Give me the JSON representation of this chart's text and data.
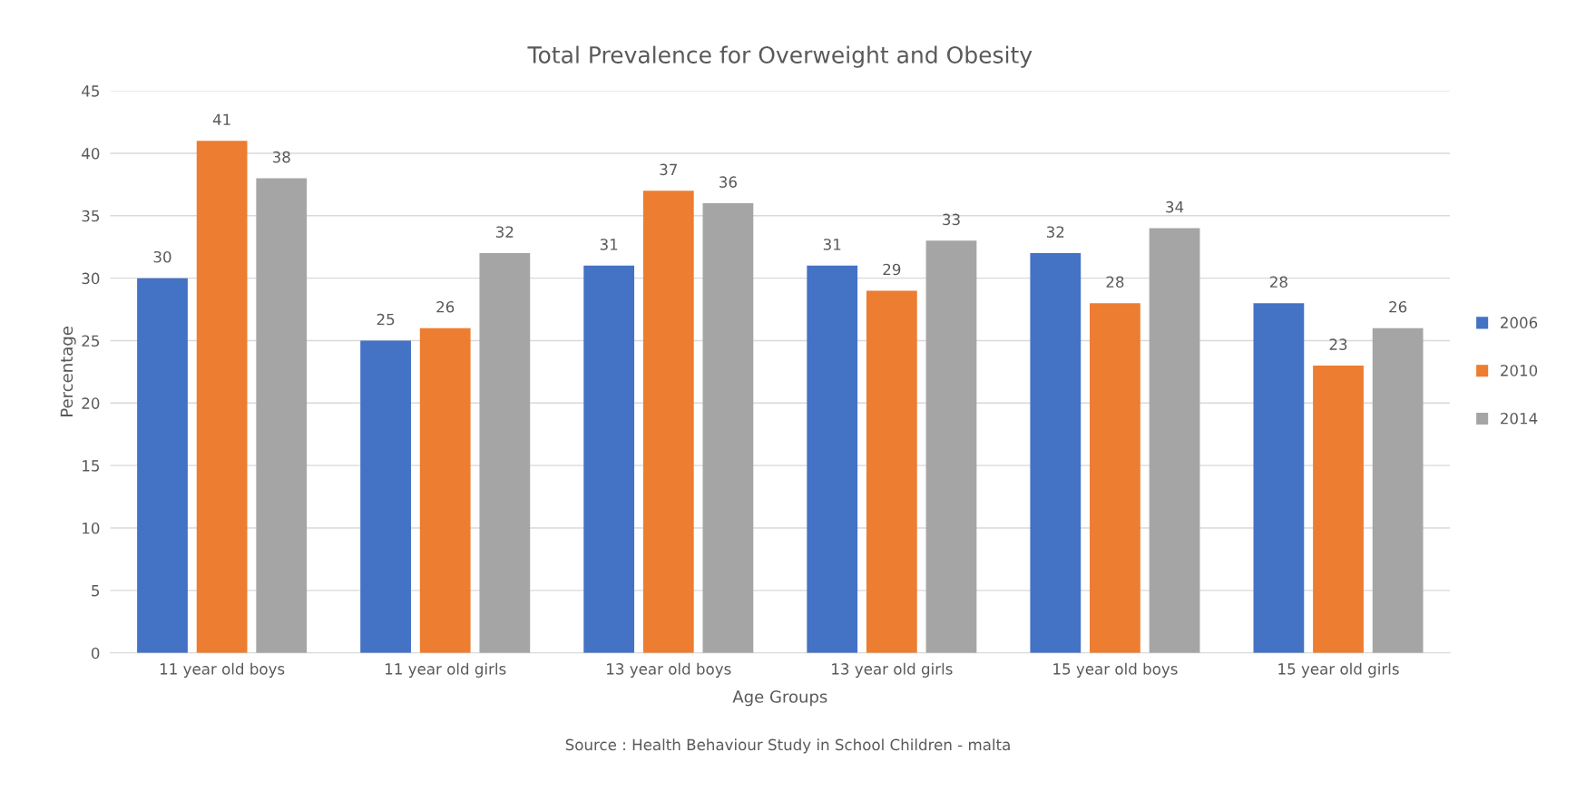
{
  "chart_data": {
    "type": "bar",
    "title": "Total Prevalence for Overweight and Obesity",
    "xlabel": "Age Groups",
    "ylabel": "Percentage",
    "categories": [
      "11 year old boys",
      "11 year old girls",
      "13 year old boys",
      "13 year old girls",
      "15 year old boys",
      "15 year old girls"
    ],
    "series": [
      {
        "name": "2006",
        "color": "#4472c4",
        "values": [
          30,
          25,
          31,
          31,
          32,
          28
        ]
      },
      {
        "name": "2010",
        "color": "#ed7d31",
        "values": [
          41,
          26,
          37,
          29,
          28,
          23
        ]
      },
      {
        "name": "2014",
        "color": "#a5a5a5",
        "values": [
          38,
          32,
          36,
          33,
          34,
          26
        ]
      }
    ],
    "ylim": [
      0,
      45
    ],
    "yticks": [
      0,
      5,
      10,
      15,
      20,
      25,
      30,
      35,
      40,
      45
    ],
    "grid": "y",
    "legend": "right",
    "data_labels": true,
    "annotations": [
      "Source : Health Behaviour Study in School Children - malta"
    ]
  }
}
